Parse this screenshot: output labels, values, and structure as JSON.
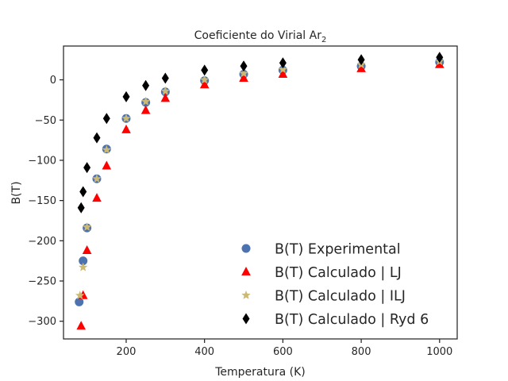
{
  "chart_data": {
    "type": "scatter",
    "title": "Coeficiente do Virial Ar",
    "title_subscript": "2",
    "xlabel": "Temperatura (K)",
    "ylabel": "B(T)",
    "xlim": [
      40,
      1045
    ],
    "ylim": [
      -322,
      42
    ],
    "xticks": [
      200,
      400,
      600,
      800,
      1000
    ],
    "yticks": [
      0,
      -50,
      -100,
      -150,
      -200,
      -250,
      -300
    ],
    "grid": false,
    "legend_position": "lower-right",
    "series": [
      {
        "name": "B(T) Experimental",
        "marker": "circle",
        "color": "#4c72b0",
        "x": [
          80,
          90,
          100,
          125,
          150,
          200,
          250,
          300,
          400,
          500,
          600,
          800,
          1000
        ],
        "y": [
          -276,
          -225,
          -184,
          -123,
          -86,
          -48,
          -28,
          -15,
          -1,
          7,
          12,
          17,
          22
        ]
      },
      {
        "name": "B(T) Calculado | LJ",
        "marker": "triangle",
        "color": "#ff0000",
        "x": [
          85,
          90,
          100,
          125,
          150,
          200,
          250,
          300,
          400,
          500,
          600,
          800,
          1000
        ],
        "y": [
          -306,
          -268,
          -212,
          -147,
          -107,
          -62,
          -38,
          -23,
          -6,
          2,
          7,
          14,
          19
        ]
      },
      {
        "name": "B(T) Calculado | ILJ",
        "marker": "star",
        "color": "#ccb974",
        "x": [
          82,
          90,
          100,
          125,
          150,
          200,
          250,
          300,
          400,
          500,
          600,
          800,
          1000
        ],
        "y": [
          -268,
          -233,
          -183,
          -123,
          -87,
          -48,
          -27,
          -14,
          0,
          8,
          13,
          19,
          23
        ]
      },
      {
        "name": "B(T) Calculado | Ryd 6",
        "marker": "thin_diamond",
        "color": "#000000",
        "x": [
          85,
          90,
          100,
          125,
          150,
          200,
          250,
          300,
          400,
          500,
          600,
          800,
          1000
        ],
        "y": [
          -159,
          -139,
          -109,
          -72,
          -48,
          -21,
          -7,
          2,
          12,
          17,
          21,
          25,
          28
        ]
      }
    ]
  }
}
